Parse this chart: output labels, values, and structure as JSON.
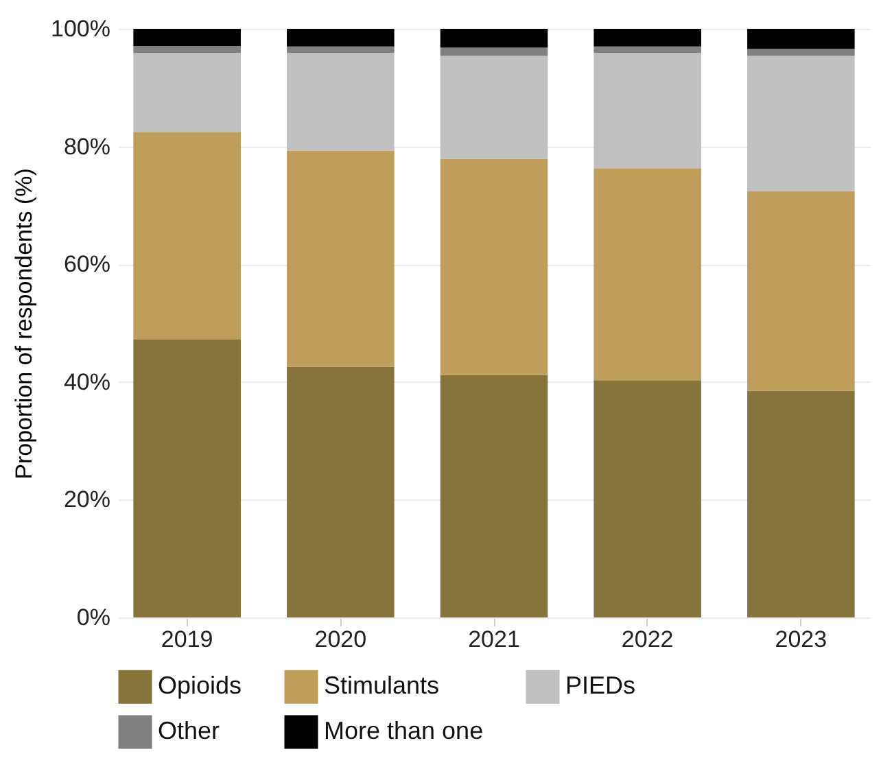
{
  "chart_data": {
    "type": "bar",
    "stacked": true,
    "ylabel": "Proportion of respondents (%)",
    "categories": [
      "2019",
      "2020",
      "2021",
      "2022",
      "2023"
    ],
    "series": [
      {
        "name": "Opioids",
        "color": "#86743b",
        "values": [
          47.2,
          42.6,
          41.2,
          40.3,
          38.5
        ]
      },
      {
        "name": "Stimulants",
        "color": "#bf9d5a",
        "values": [
          35.3,
          36.7,
          36.7,
          36.0,
          33.9
        ]
      },
      {
        "name": "PIEDs",
        "color": "#c0c0c0",
        "values": [
          13.4,
          16.6,
          17.5,
          19.6,
          23.0
        ]
      },
      {
        "name": "Other",
        "color": "#808080",
        "values": [
          1.2,
          1.1,
          1.4,
          1.1,
          1.2
        ]
      },
      {
        "name": "More than one",
        "color": "#000000",
        "values": [
          2.9,
          3.0,
          3.2,
          3.0,
          3.4
        ]
      }
    ],
    "ylim": [
      0,
      100
    ],
    "yticks": [
      {
        "value": 0,
        "label": "0%"
      },
      {
        "value": 20,
        "label": "20%"
      },
      {
        "value": 40,
        "label": "40%"
      },
      {
        "value": 60,
        "label": "60%"
      },
      {
        "value": 80,
        "label": "80%"
      },
      {
        "value": 100,
        "label": "100%"
      }
    ],
    "grid": "y",
    "legend": "bottom"
  }
}
